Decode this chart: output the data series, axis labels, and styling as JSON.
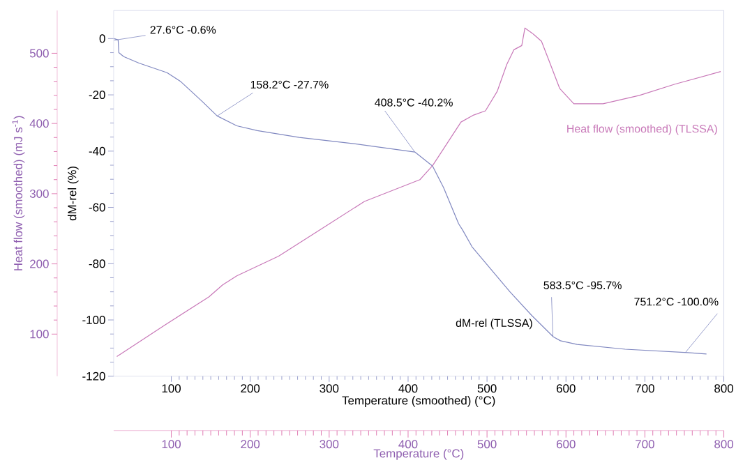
{
  "chart_data": {
    "type": "line",
    "xlabel": "Temperature (smoothed) (°C)",
    "ylabel": "dM-rel (%)",
    "y2label": "Heat flow (smoothed) (mJ s$^{-1}$)",
    "x2label": "Temperature (°C)",
    "xlim": [
      27,
      800
    ],
    "xticks": [
      100,
      200,
      300,
      400,
      500,
      600,
      700,
      800
    ],
    "ylim": [
      -120,
      10
    ],
    "yticks": [
      -120,
      -100,
      -80,
      -60,
      -40,
      -20,
      0
    ],
    "y2lim": [
      40,
      561
    ],
    "y2ticks": [
      100,
      200,
      300,
      400,
      500
    ],
    "x2lim": [
      27,
      800
    ],
    "x2ticks": [
      100,
      200,
      300,
      400,
      500,
      600,
      700,
      800
    ],
    "series": [
      {
        "name": "dM-rel (TLSSA)",
        "color": "#8088c0",
        "x": [
          27.6,
          32.7,
          33.5,
          39.8,
          59,
          94.6,
          112,
          139,
          158.2,
          183,
          209,
          262,
          333,
          408.5,
          431,
          445,
          464,
          469,
          481,
          529,
          557,
          584,
          593,
          614,
          675,
          754,
          778
        ],
        "values": [
          0,
          -0.5,
          -5,
          -6.4,
          -8.7,
          -12.1,
          -15.3,
          -22.3,
          -27.5,
          -31,
          -32.7,
          -35.1,
          -37.4,
          -40.3,
          -45.3,
          -53,
          -65.8,
          -68,
          -74,
          -90,
          -98.5,
          -106,
          -107.4,
          -108.7,
          -110.4,
          -111.6,
          -112.1
        ]
      },
      {
        "name": "Heat flow (smoothed) (TLSSA)",
        "color": "#c878b8",
        "axis": "y2",
        "x": [
          31,
          92,
          147.6,
          165,
          183,
          236,
          289,
          344.7,
          415,
          431,
          445,
          467,
          483,
          498,
          513,
          525,
          534,
          544,
          548,
          559,
          569,
          578,
          592,
          610,
          647,
          693,
          738,
          796
        ],
        "values": [
          68,
          113,
          153,
          170,
          183,
          211,
          249,
          289,
          320,
          340,
          364,
          402,
          412,
          418,
          446,
          484,
          505,
          511,
          536,
          527,
          517,
          491,
          450,
          428,
          428,
          440,
          456,
          474
        ]
      }
    ],
    "annotations": [
      {
        "text": "27.6°C  -0.6%",
        "x": 27.6,
        "y": -0.6
      },
      {
        "text": "158.2°C  -27.7%",
        "x": 158.2,
        "y": -27.5
      },
      {
        "text": "408.5°C  -40.2%",
        "x": 408.5,
        "y": -40.3
      },
      {
        "text": "583.5°C  -95.7%",
        "x": 583.5,
        "y": -106
      },
      {
        "text": "751.2°C  -100.0%",
        "x": 751.2,
        "y": -111.6
      }
    ]
  }
}
